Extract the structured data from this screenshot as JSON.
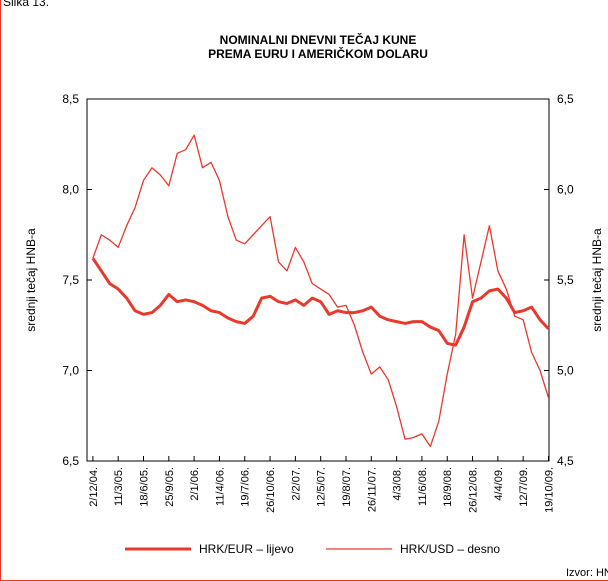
{
  "page_label": "Slika 13.",
  "source": "Izvor: HNB",
  "chart_data": {
    "type": "line",
    "title": [
      "NOMINALNI DNEVNI TEČAJ KUNE",
      "PREMA EURU I AMERIČKOM DOLARU"
    ],
    "ylabel": "srednji tečaj HNB-a",
    "y2label": "srednji tečaj HNB-a",
    "xlim": [
      "2004-11-09",
      "2009-10-21"
    ],
    "ylim": [
      6.5,
      8.5
    ],
    "yticks": [
      {
        "value": 6.5,
        "label": "6,5"
      },
      {
        "value": 7.0,
        "label": "7,0"
      },
      {
        "value": 7.5,
        "label": "7,5"
      },
      {
        "value": 8.0,
        "label": "8,0"
      },
      {
        "value": 8.5,
        "label": "8,5"
      }
    ],
    "y2lim": [
      4.5,
      6.5
    ],
    "y2ticks": [
      {
        "value": 4.5,
        "label": "4,5"
      },
      {
        "value": 5.0,
        "label": "5,0"
      },
      {
        "value": 5.5,
        "label": "5,5"
      },
      {
        "value": 6.0,
        "label": "6,0"
      },
      {
        "value": 6.5,
        "label": "6,5"
      }
    ],
    "xticks": [
      {
        "value": "2004-12-02",
        "label": "2/12/04."
      },
      {
        "value": "2005-03-11",
        "label": "11/3/05."
      },
      {
        "value": "2005-06-18",
        "label": "18/6/05."
      },
      {
        "value": "2005-09-25",
        "label": "25/9/05."
      },
      {
        "value": "2006-01-02",
        "label": "2/1/06."
      },
      {
        "value": "2006-04-11",
        "label": "11/4/06."
      },
      {
        "value": "2006-07-19",
        "label": "19/7/06."
      },
      {
        "value": "2006-10-26",
        "label": "26/10/06."
      },
      {
        "value": "2007-02-02",
        "label": "2/2/07."
      },
      {
        "value": "2007-05-12",
        "label": "12/5/07."
      },
      {
        "value": "2007-08-19",
        "label": "19/8/07."
      },
      {
        "value": "2007-11-26",
        "label": "26/11/07."
      },
      {
        "value": "2008-03-04",
        "label": "4/3/08."
      },
      {
        "value": "2008-06-11",
        "label": "11/6/08."
      },
      {
        "value": "2008-09-18",
        "label": "18/9/08."
      },
      {
        "value": "2008-12-26",
        "label": "26/12/08."
      },
      {
        "value": "2009-04-04",
        "label": "4/4/09."
      },
      {
        "value": "2009-07-12",
        "label": "12/7/09."
      },
      {
        "value": "2009-10-19",
        "label": "19/10/09."
      }
    ],
    "x": [
      "2004-12-02",
      "2005-01-04",
      "2005-02-06",
      "2005-03-11",
      "2005-04-13",
      "2005-05-16",
      "2005-06-18",
      "2005-07-21",
      "2005-08-23",
      "2005-09-25",
      "2005-10-28",
      "2005-11-30",
      "2006-01-02",
      "2006-02-04",
      "2006-03-09",
      "2006-04-11",
      "2006-05-14",
      "2006-06-16",
      "2006-07-19",
      "2006-08-21",
      "2006-09-23",
      "2006-10-26",
      "2006-11-28",
      "2006-12-31",
      "2007-02-02",
      "2007-03-07",
      "2007-04-09",
      "2007-05-12",
      "2007-06-14",
      "2007-07-17",
      "2007-08-19",
      "2007-09-21",
      "2007-10-24",
      "2007-11-26",
      "2007-12-29",
      "2008-01-31",
      "2008-03-04",
      "2008-04-06",
      "2008-05-09",
      "2008-06-11",
      "2008-07-14",
      "2008-08-16",
      "2008-09-18",
      "2008-10-21",
      "2008-11-23",
      "2008-12-26",
      "2009-01-28",
      "2009-03-02",
      "2009-04-04",
      "2009-05-07",
      "2009-06-09",
      "2009-07-12",
      "2009-08-14",
      "2009-09-16",
      "2009-10-19"
    ],
    "series": [
      {
        "name": "HRK/EUR – lijevo",
        "color": "#e8392d",
        "width": 3,
        "values": [
          7.62,
          7.55,
          7.48,
          7.45,
          7.4,
          7.33,
          7.31,
          7.32,
          7.36,
          7.42,
          7.38,
          7.39,
          7.38,
          7.36,
          7.33,
          7.32,
          7.29,
          7.27,
          7.26,
          7.3,
          7.4,
          7.41,
          7.38,
          7.37,
          7.39,
          7.36,
          7.4,
          7.38,
          7.31,
          7.33,
          7.32,
          7.32,
          7.33,
          7.35,
          7.3,
          7.28,
          7.27,
          7.26,
          7.27,
          7.27,
          7.24,
          7.22,
          7.15,
          7.14,
          7.24,
          7.38,
          7.4,
          7.44,
          7.45,
          7.4,
          7.32,
          7.33,
          7.35,
          7.28,
          7.23
        ]
      },
      {
        "name": "HRK/USD – desno",
        "color": "#e8392d",
        "width": 1.3,
        "axis": "y2",
        "values": [
          5.62,
          5.75,
          5.72,
          5.68,
          5.8,
          5.9,
          6.05,
          6.12,
          6.08,
          6.02,
          6.2,
          6.22,
          6.3,
          6.12,
          6.15,
          6.05,
          5.85,
          5.72,
          5.7,
          5.75,
          5.8,
          5.85,
          5.6,
          5.55,
          5.68,
          5.6,
          5.48,
          5.45,
          5.42,
          5.35,
          5.36,
          5.25,
          5.1,
          4.98,
          5.02,
          4.95,
          4.8,
          4.62,
          4.63,
          4.65,
          4.58,
          4.72,
          4.98,
          5.2,
          5.75,
          5.4,
          5.6,
          5.8,
          5.55,
          5.45,
          5.3,
          5.28,
          5.1,
          5.0,
          4.85
        ]
      }
    ]
  }
}
